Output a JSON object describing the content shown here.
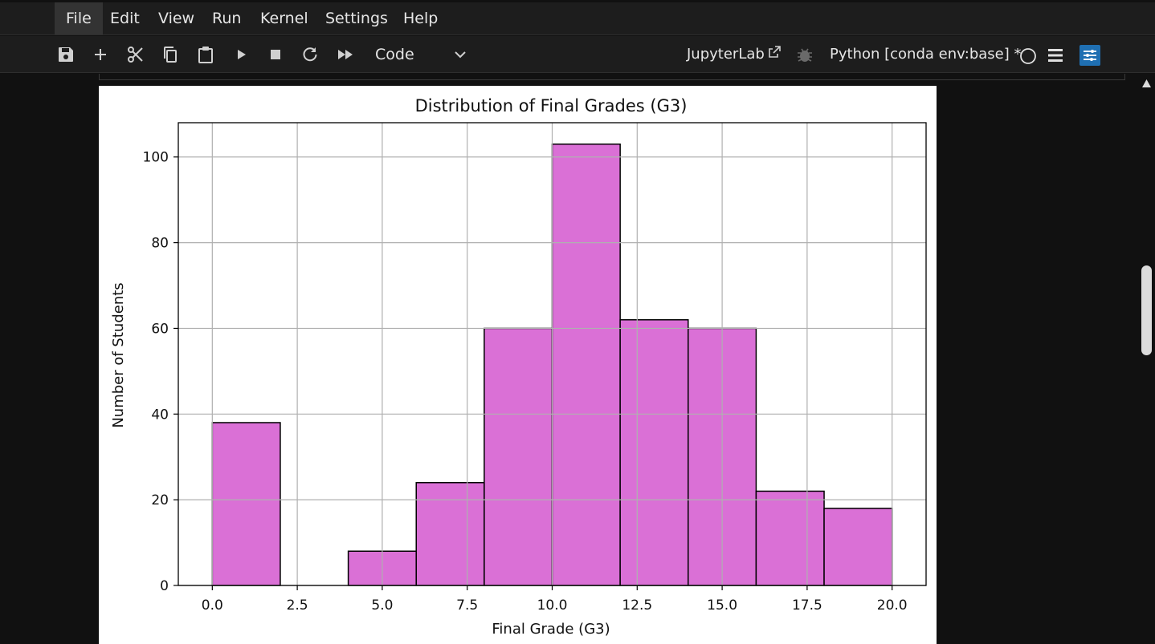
{
  "menu": {
    "items": [
      "File",
      "Edit",
      "View",
      "Run",
      "Kernel",
      "Settings",
      "Help"
    ],
    "active": "File"
  },
  "toolbar": {
    "icons": [
      "save-icon",
      "add-cell-icon",
      "cut-icon",
      "copy-icon",
      "paste-icon",
      "run-icon",
      "stop-icon",
      "restart-icon",
      "fast-forward-icon"
    ],
    "cell_type": "Code",
    "jupyterlab_label": "JupyterLab",
    "kernel_name": "Python [conda env:base] *",
    "accent": "#1f6fb2"
  },
  "chart_data": {
    "type": "bar",
    "title": "Distribution of Final Grades (G3)",
    "xlabel": "Final Grade (G3)",
    "ylabel": "Number of Students",
    "bin_edges": [
      0,
      2,
      4,
      6,
      8,
      10,
      12,
      14,
      16,
      18,
      20
    ],
    "values": [
      38,
      0,
      8,
      24,
      60,
      103,
      62,
      60,
      22,
      18
    ],
    "xlim": [
      -1,
      21
    ],
    "ylim": [
      0,
      108
    ],
    "xticks": [
      "0.0",
      "2.5",
      "5.0",
      "7.5",
      "10.0",
      "12.5",
      "15.0",
      "17.5",
      "20.0"
    ],
    "xtick_values": [
      0,
      2.5,
      5,
      7.5,
      10,
      12.5,
      15,
      17.5,
      20
    ],
    "yticks": [
      "0",
      "20",
      "40",
      "60",
      "80",
      "100"
    ],
    "ytick_values": [
      0,
      20,
      40,
      60,
      80,
      100
    ],
    "bar_color": "#da70d6",
    "edge_color": "#000000",
    "grid": true
  }
}
